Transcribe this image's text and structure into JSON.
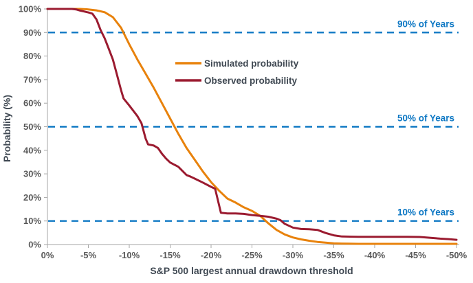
{
  "chart_data": {
    "type": "line",
    "xlabel": "S&P 500 largest annual drawdown threshold",
    "ylabel": "Probability (%)",
    "xlim": [
      0,
      -50
    ],
    "ylim": [
      0,
      100
    ],
    "grid": "none",
    "legend_position": "inside-upper-middle",
    "x_tick_labels": [
      "0%",
      "-5%",
      "-10%",
      "-15%",
      "-20%",
      "-25%",
      "-30%",
      "-35%",
      "-40%",
      "-45%",
      "-50%"
    ],
    "y_tick_labels_top_down": [
      "100%",
      "90%",
      "80%",
      "70%",
      "60%",
      "50%",
      "40%",
      "30%",
      "20%",
      "10%",
      "0%"
    ],
    "reference_lines": [
      {
        "value": 90,
        "label": "90% of Years"
      },
      {
        "value": 50,
        "label": "50% of Years"
      },
      {
        "value": 10,
        "label": "10% of Years"
      }
    ],
    "series": [
      {
        "name": "Simulated probability",
        "color": "#E8820C",
        "points": [
          [
            0,
            100
          ],
          [
            -2,
            100
          ],
          [
            -4,
            100
          ],
          [
            -5,
            99.8
          ],
          [
            -6,
            99.4
          ],
          [
            -7,
            98.6
          ],
          [
            -8,
            96.5
          ],
          [
            -9,
            92
          ],
          [
            -10,
            85
          ],
          [
            -11,
            78.5
          ],
          [
            -12,
            72.5
          ],
          [
            -13,
            66.5
          ],
          [
            -14,
            60
          ],
          [
            -15,
            53.5
          ],
          [
            -16,
            47
          ],
          [
            -17,
            41
          ],
          [
            -18,
            36
          ],
          [
            -19,
            31
          ],
          [
            -20,
            26.5
          ],
          [
            -21,
            22.8
          ],
          [
            -22,
            19.5
          ],
          [
            -23,
            17.8
          ],
          [
            -24,
            15.8
          ],
          [
            -25,
            14.3
          ],
          [
            -26,
            12.2
          ],
          [
            -27,
            9
          ],
          [
            -28,
            6.2
          ],
          [
            -29,
            4.3
          ],
          [
            -30,
            3
          ],
          [
            -31,
            2.2
          ],
          [
            -32,
            1.6
          ],
          [
            -33,
            1.1
          ],
          [
            -34,
            0.8
          ],
          [
            -35,
            0.5
          ],
          [
            -36,
            0.4
          ],
          [
            -38,
            0.3
          ],
          [
            -42,
            0.3
          ],
          [
            -46,
            0.3
          ],
          [
            -50,
            0.3
          ]
        ]
      },
      {
        "name": "Observed probability",
        "color": "#9B1B30",
        "points": [
          [
            0,
            100
          ],
          [
            -3,
            100
          ],
          [
            -3.5,
            99.8
          ],
          [
            -4,
            99.3
          ],
          [
            -5,
            98.5
          ],
          [
            -5.5,
            98
          ],
          [
            -6,
            95.5
          ],
          [
            -6.5,
            91
          ],
          [
            -7,
            87.5
          ],
          [
            -7.5,
            83
          ],
          [
            -8,
            78.5
          ],
          [
            -8.5,
            72
          ],
          [
            -9,
            65.5
          ],
          [
            -9.3,
            62
          ],
          [
            -10,
            59
          ],
          [
            -11,
            54.5
          ],
          [
            -11.5,
            51.5
          ],
          [
            -12,
            45
          ],
          [
            -12.3,
            42.5
          ],
          [
            -13,
            42
          ],
          [
            -13.5,
            41
          ],
          [
            -14,
            38.5
          ],
          [
            -14.5,
            36.5
          ],
          [
            -15,
            34.8
          ],
          [
            -16,
            33
          ],
          [
            -17,
            29.5
          ],
          [
            -17.5,
            28.8
          ],
          [
            -18,
            28
          ],
          [
            -19,
            26.3
          ],
          [
            -20,
            24.5
          ],
          [
            -20.5,
            23.7
          ],
          [
            -21.2,
            13.5
          ],
          [
            -22,
            13.2
          ],
          [
            -23,
            13.2
          ],
          [
            -24,
            13
          ],
          [
            -25,
            12.5
          ],
          [
            -26,
            12.2
          ],
          [
            -27,
            11.8
          ],
          [
            -28,
            11
          ],
          [
            -28.5,
            10.3
          ],
          [
            -29,
            8.8
          ],
          [
            -30,
            7.2
          ],
          [
            -31,
            6.6
          ],
          [
            -32,
            6.5
          ],
          [
            -33,
            6.2
          ],
          [
            -34,
            4.9
          ],
          [
            -35,
            3.9
          ],
          [
            -36,
            3.4
          ],
          [
            -38,
            3.3
          ],
          [
            -40,
            3.3
          ],
          [
            -42,
            3.3
          ],
          [
            -44,
            3.3
          ],
          [
            -45.5,
            3.2
          ],
          [
            -47,
            2.8
          ],
          [
            -48,
            2.5
          ],
          [
            -49,
            2.3
          ],
          [
            -50,
            2
          ]
        ]
      }
    ],
    "colors": {
      "axis": "#A6A6A6",
      "tick_text": "#595959",
      "title_text": "#404953",
      "reference": "#0E78C4"
    }
  }
}
